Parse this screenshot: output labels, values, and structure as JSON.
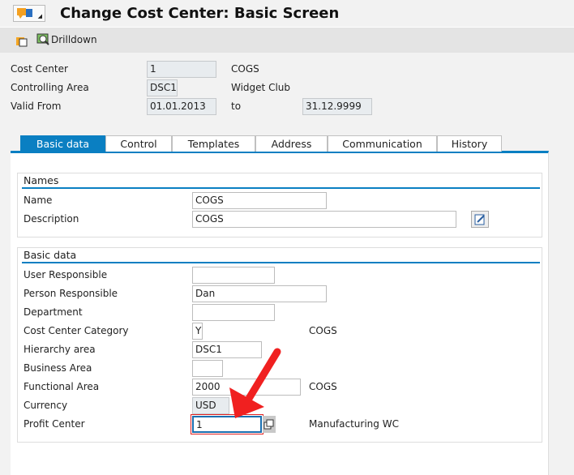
{
  "header": {
    "title": "Change Cost Center: Basic Screen"
  },
  "toolbar": {
    "drilldown_label": "Drilldown"
  },
  "top_fields": {
    "cost_center": {
      "label": "Cost Center",
      "value": "1",
      "desc": "COGS"
    },
    "controlling_area": {
      "label": "Controlling Area",
      "value": "DSC1",
      "desc": "Widget Club"
    },
    "valid_from": {
      "label": "Valid From",
      "value": "01.01.2013",
      "to_label": "to",
      "to_value": "31.12.9999"
    }
  },
  "tabs": [
    {
      "label": "Basic data"
    },
    {
      "label": "Control"
    },
    {
      "label": "Templates"
    },
    {
      "label": "Address"
    },
    {
      "label": "Communication"
    },
    {
      "label": "History"
    }
  ],
  "names_group": {
    "title": "Names",
    "name_label": "Name",
    "name_value": "COGS",
    "desc_label": "Description",
    "desc_value": "COGS"
  },
  "basic_group": {
    "title": "Basic data",
    "rows": [
      {
        "label": "User Responsible",
        "value": "",
        "desc": ""
      },
      {
        "label": "Person Responsible",
        "value": "Dan",
        "desc": ""
      },
      {
        "label": "Department",
        "value": "",
        "desc": ""
      },
      {
        "label": "Cost Center Category",
        "value": "Y",
        "desc": "COGS"
      },
      {
        "label": "Hierarchy area",
        "value": "DSC1",
        "desc": ""
      },
      {
        "label": "Business Area",
        "value": "",
        "desc": ""
      },
      {
        "label": "Functional Area",
        "value": "2000",
        "desc": "COGS"
      },
      {
        "label": "Currency",
        "value": "USD",
        "desc": ""
      },
      {
        "label": "Profit Center",
        "value": "1",
        "desc": "Manufacturing WC"
      }
    ]
  },
  "colors": {
    "accent": "#0a7fc2",
    "arrow": "#f02020"
  }
}
